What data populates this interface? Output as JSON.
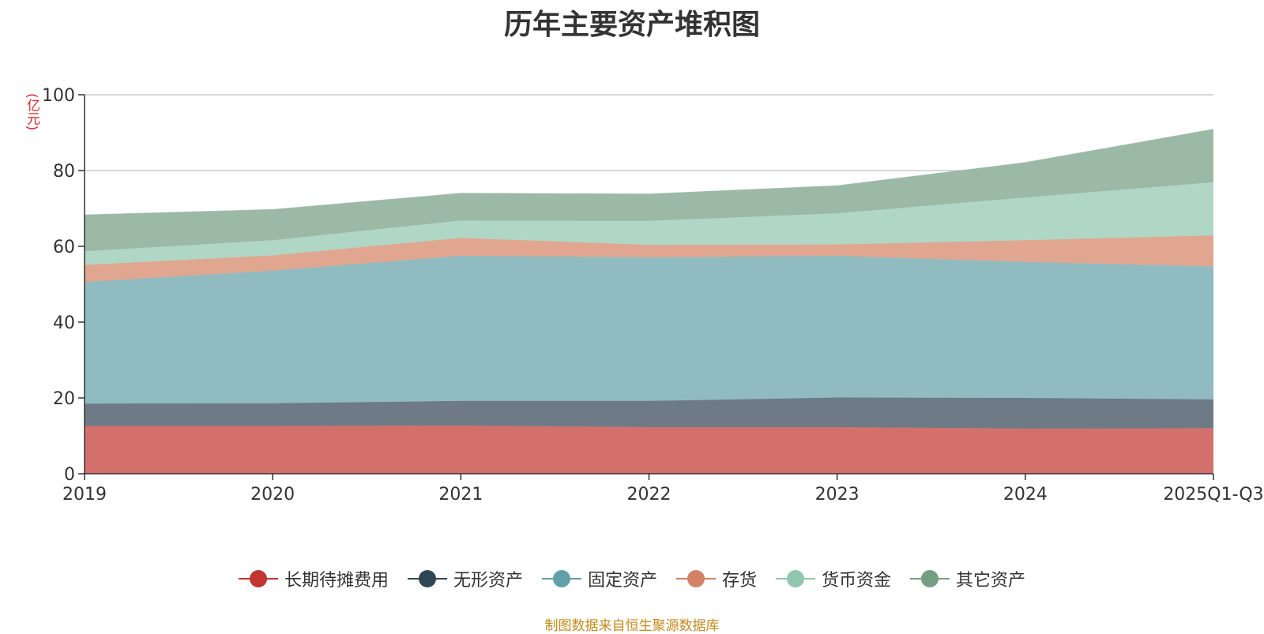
{
  "chart_data": {
    "type": "area",
    "stacked": true,
    "title": "历年主要资产堆积图",
    "unit": "(亿元)",
    "source_note": "制图数据来自恒生聚源数据库",
    "categories": [
      "2019",
      "2020",
      "2021",
      "2022",
      "2023",
      "2024",
      "2025Q1-Q3"
    ],
    "ylim": [
      0,
      100
    ],
    "yticks": [
      0,
      20,
      40,
      60,
      80,
      100
    ],
    "grid": true,
    "legend_position": "bottom",
    "series": [
      {
        "name": "长期待摊费用",
        "color": "#c23531",
        "fill": "#d4706c",
        "values": [
          12.6,
          12.6,
          12.7,
          12.3,
          12.3,
          11.9,
          12.0
        ]
      },
      {
        "name": "无形资产",
        "color": "#2f4554",
        "fill": "#6e7b87",
        "values": [
          5.9,
          6.0,
          6.5,
          6.9,
          7.8,
          8.1,
          7.6
        ]
      },
      {
        "name": "固定资产",
        "color": "#61a0a8",
        "fill": "#90bbc0",
        "values": [
          32.1,
          35.0,
          38.3,
          37.9,
          37.4,
          35.9,
          35.1
        ]
      },
      {
        "name": "存货",
        "color": "#d48265",
        "fill": "#e0a690",
        "values": [
          4.5,
          4.0,
          4.7,
          3.3,
          3.0,
          5.7,
          8.2
        ]
      },
      {
        "name": "货币资金",
        "color": "#91c7ae",
        "fill": "#b0d6c5",
        "values": [
          3.6,
          4.0,
          4.6,
          6.3,
          8.2,
          11.3,
          14.0
        ]
      },
      {
        "name": "其它资产",
        "color": "#749f83",
        "fill": "#9cb9a6",
        "values": [
          9.6,
          8.1,
          7.2,
          7.1,
          7.3,
          9.2,
          14.0
        ]
      }
    ]
  }
}
